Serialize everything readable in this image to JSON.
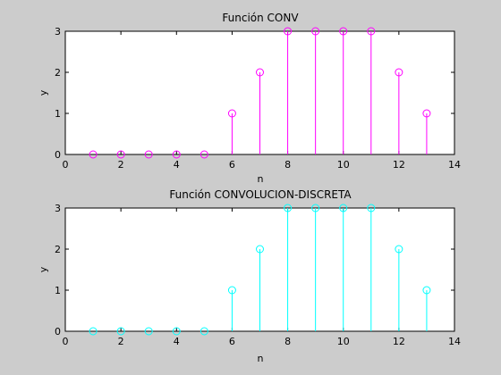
{
  "figure": {
    "background": "#cccccc"
  },
  "chart_data": [
    {
      "type": "stem",
      "title": "Función CONV",
      "xlabel": "n",
      "ylabel": "y",
      "x": [
        1,
        2,
        3,
        4,
        5,
        6,
        7,
        8,
        9,
        10,
        11,
        12,
        13
      ],
      "values": [
        0,
        0,
        0,
        0,
        0,
        1,
        2,
        3,
        3,
        3,
        3,
        2,
        1
      ],
      "xlim": [
        0,
        14
      ],
      "ylim": [
        0,
        3
      ],
      "xticks": [
        0,
        2,
        4,
        6,
        8,
        10,
        12,
        14
      ],
      "yticks": [
        0,
        1,
        2,
        3
      ],
      "color": "#ff00ff",
      "marker": "circle",
      "grid": false
    },
    {
      "type": "stem",
      "title": "Función CONVOLUCION-DISCRETA",
      "xlabel": "n",
      "ylabel": "y",
      "x": [
        1,
        2,
        3,
        4,
        5,
        6,
        7,
        8,
        9,
        10,
        11,
        12,
        13
      ],
      "values": [
        0,
        0,
        0,
        0,
        0,
        1,
        2,
        3,
        3,
        3,
        3,
        2,
        1
      ],
      "xlim": [
        0,
        14
      ],
      "ylim": [
        0,
        3
      ],
      "xticks": [
        0,
        2,
        4,
        6,
        8,
        10,
        12,
        14
      ],
      "yticks": [
        0,
        1,
        2,
        3
      ],
      "color": "#00ffff",
      "marker": "circle",
      "grid": false
    }
  ]
}
